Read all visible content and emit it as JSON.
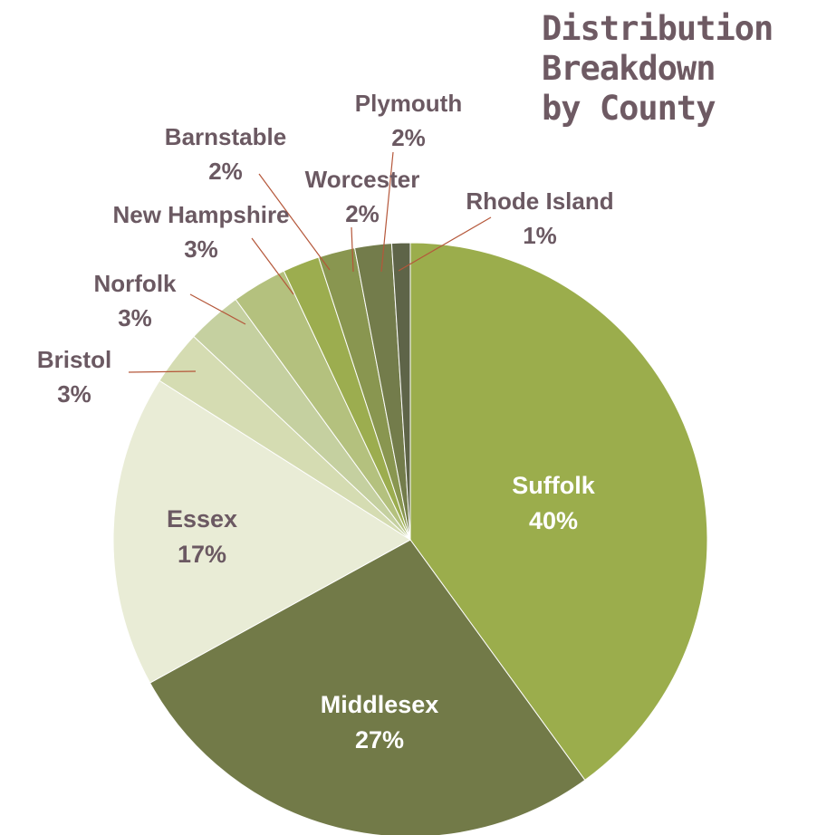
{
  "chart_data": {
    "type": "pie",
    "title": "Distribution\nBreakdown\nby County",
    "slices": [
      {
        "label": "Suffolk",
        "value": 40,
        "value_label": "40%",
        "color": "#9bad4c",
        "text_color": "#ffffff",
        "label_placement": "inside"
      },
      {
        "label": "Middlesex",
        "value": 27,
        "value_label": "27%",
        "color": "#727a48",
        "text_color": "#ffffff",
        "label_placement": "inside"
      },
      {
        "label": "Essex",
        "value": 17,
        "value_label": "17%",
        "color": "#e9ecd6",
        "text_color": "#6b5962",
        "label_placement": "inside"
      },
      {
        "label": "Bristol",
        "value": 3,
        "value_label": "3%",
        "color": "#d5dcb2",
        "text_color": "#6b5962",
        "label_placement": "outside"
      },
      {
        "label": "Norfolk",
        "value": 3,
        "value_label": "3%",
        "color": "#c5d0a0",
        "text_color": "#6b5962",
        "label_placement": "outside"
      },
      {
        "label": "New Hampshire",
        "value": 3,
        "value_label": "3%",
        "color": "#b4c17e",
        "text_color": "#6b5962",
        "label_placement": "outside"
      },
      {
        "label": "Barnstable",
        "value": 2,
        "value_label": "2%",
        "color": "#9cad4f",
        "text_color": "#6b5962",
        "label_placement": "outside"
      },
      {
        "label": "Worcester",
        "value": 2,
        "value_label": "2%",
        "color": "#899650",
        "text_color": "#6b5962",
        "label_placement": "outside"
      },
      {
        "label": "Plymouth",
        "value": 2,
        "value_label": "2%",
        "color": "#737c4b",
        "text_color": "#6b5962",
        "label_placement": "outside"
      },
      {
        "label": "Rhode Island",
        "value": 1,
        "value_label": "1%",
        "color": "#5e6448",
        "text_color": "#6b5962",
        "label_placement": "outside"
      }
    ],
    "start_angle": "12 o'clock",
    "direction": "clockwise",
    "leader_line_color": "#b5573a",
    "legend": "none"
  }
}
